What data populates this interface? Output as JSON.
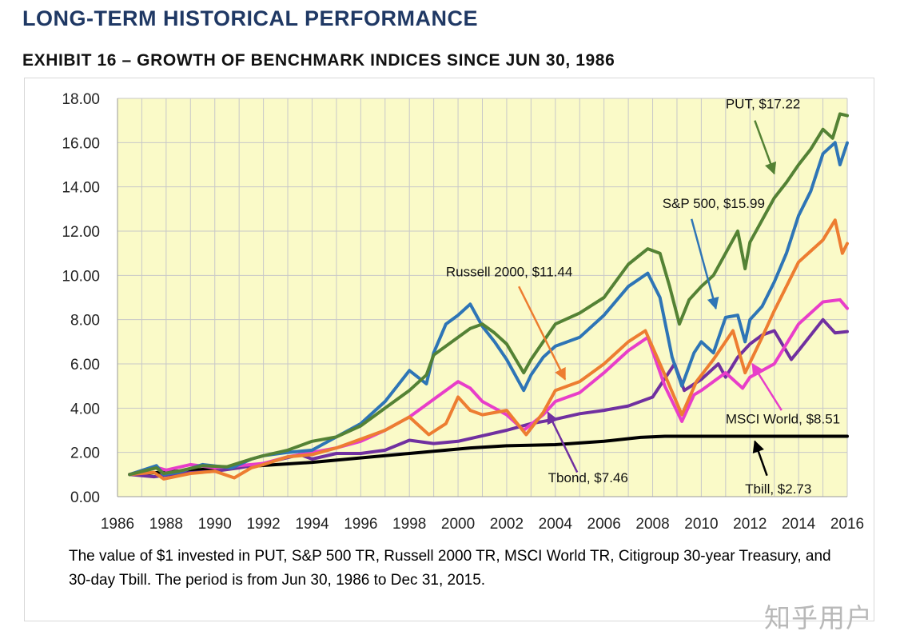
{
  "header": {
    "title": "LONG-TERM HISTORICAL PERFORMANCE",
    "exhibit": "EXHIBIT 16 – GROWTH OF BENCHMARK INDICES SINCE JUN 30, 1986"
  },
  "caption": "The value of $1 invested in PUT,  S&P 500 TR, Russell 2000 TR, MSCI World TR, Citigroup 30-year Treasury, and 30-day Tbill. The period is from Jun 30, 1986 to Dec 31, 2015.",
  "watermark": "知乎用户",
  "chart_data": {
    "type": "line",
    "title": "",
    "xlabel": "",
    "ylabel": "",
    "xlim": [
      1986,
      2016
    ],
    "ylim": [
      0,
      18
    ],
    "x_ticks": [
      "1986",
      "1988",
      "1990",
      "1992",
      "1994",
      "1996",
      "1998",
      "2000",
      "2002",
      "2004",
      "2006",
      "2008",
      "2010",
      "2012",
      "2014",
      "2016"
    ],
    "y_ticks": [
      "0.00",
      "2.00",
      "4.00",
      "6.00",
      "8.00",
      "10.00",
      "12.00",
      "14.00",
      "16.00",
      "18.00"
    ],
    "grid": true,
    "plot_background": "#fafac8",
    "series": [
      {
        "name": "Tbill",
        "color": "#000000",
        "points": [
          [
            1986.5,
            1.0
          ],
          [
            1990,
            1.27
          ],
          [
            1994,
            1.55
          ],
          [
            1998,
            1.95
          ],
          [
            2000.5,
            2.2
          ],
          [
            2002,
            2.3
          ],
          [
            2004,
            2.35
          ],
          [
            2006,
            2.5
          ],
          [
            2007.5,
            2.68
          ],
          [
            2008.5,
            2.73
          ],
          [
            2016,
            2.73
          ]
        ]
      },
      {
        "name": "Tbond",
        "color": "#7030a0",
        "points": [
          [
            1986.5,
            1.0
          ],
          [
            1987.5,
            0.9
          ],
          [
            1988.5,
            1.05
          ],
          [
            1990,
            1.15
          ],
          [
            1991,
            1.3
          ],
          [
            1992,
            1.5
          ],
          [
            1993.5,
            1.9
          ],
          [
            1994,
            1.7
          ],
          [
            1995,
            1.95
          ],
          [
            1996,
            1.95
          ],
          [
            1997,
            2.1
          ],
          [
            1998,
            2.55
          ],
          [
            1999,
            2.4
          ],
          [
            2000,
            2.5
          ],
          [
            2001,
            2.75
          ],
          [
            2002,
            3.0
          ],
          [
            2003,
            3.3
          ],
          [
            2004,
            3.5
          ],
          [
            2005,
            3.75
          ],
          [
            2006,
            3.9
          ],
          [
            2007,
            4.1
          ],
          [
            2008,
            4.5
          ],
          [
            2008.9,
            6.0
          ],
          [
            2009.3,
            4.8
          ],
          [
            2010,
            5.3
          ],
          [
            2010.7,
            6.0
          ],
          [
            2011,
            5.4
          ],
          [
            2011.5,
            6.3
          ],
          [
            2012,
            6.9
          ],
          [
            2012.5,
            7.3
          ],
          [
            2013,
            7.5
          ],
          [
            2013.7,
            6.2
          ],
          [
            2014,
            6.6
          ],
          [
            2015,
            8.0
          ],
          [
            2015.5,
            7.4
          ],
          [
            2016,
            7.46
          ]
        ]
      },
      {
        "name": "MSCI World",
        "color": "#e83ec9",
        "points": [
          [
            1986.5,
            1.0
          ],
          [
            1987.5,
            1.35
          ],
          [
            1988,
            1.2
          ],
          [
            1989,
            1.45
          ],
          [
            1990,
            1.3
          ],
          [
            1991,
            1.4
          ],
          [
            1992,
            1.5
          ],
          [
            1993,
            1.8
          ],
          [
            1994,
            2.0
          ],
          [
            1995,
            2.2
          ],
          [
            1996,
            2.5
          ],
          [
            1997,
            3.0
          ],
          [
            1998,
            3.6
          ],
          [
            1999,
            4.4
          ],
          [
            2000,
            5.2
          ],
          [
            2000.5,
            4.9
          ],
          [
            2001,
            4.3
          ],
          [
            2002,
            3.7
          ],
          [
            2002.7,
            3.0
          ],
          [
            2003.5,
            3.7
          ],
          [
            2004,
            4.3
          ],
          [
            2005,
            4.7
          ],
          [
            2006,
            5.6
          ],
          [
            2007,
            6.6
          ],
          [
            2007.8,
            7.2
          ],
          [
            2008.5,
            5.0
          ],
          [
            2009.2,
            3.4
          ],
          [
            2009.7,
            4.6
          ],
          [
            2010,
            4.8
          ],
          [
            2011,
            5.6
          ],
          [
            2011.7,
            4.9
          ],
          [
            2012,
            5.4
          ],
          [
            2013,
            6.0
          ],
          [
            2014,
            7.8
          ],
          [
            2014.5,
            8.3
          ],
          [
            2015,
            8.8
          ],
          [
            2015.7,
            8.9
          ],
          [
            2016,
            8.51
          ]
        ]
      },
      {
        "name": "Russell 2000",
        "color": "#ed7d31",
        "points": [
          [
            1986.5,
            1.0
          ],
          [
            1987.5,
            1.1
          ],
          [
            1987.9,
            0.8
          ],
          [
            1989,
            1.05
          ],
          [
            1990,
            1.15
          ],
          [
            1990.8,
            0.85
          ],
          [
            1991.5,
            1.3
          ],
          [
            1992,
            1.45
          ],
          [
            1993,
            1.8
          ],
          [
            1994,
            1.9
          ],
          [
            1995,
            2.2
          ],
          [
            1996,
            2.6
          ],
          [
            1997,
            3.0
          ],
          [
            1998,
            3.6
          ],
          [
            1998.8,
            2.8
          ],
          [
            1999.5,
            3.3
          ],
          [
            2000,
            4.5
          ],
          [
            2000.5,
            3.9
          ],
          [
            2001,
            3.7
          ],
          [
            2002,
            3.9
          ],
          [
            2002.8,
            2.8
          ],
          [
            2003.5,
            3.8
          ],
          [
            2004,
            4.8
          ],
          [
            2005,
            5.2
          ],
          [
            2006,
            6.0
          ],
          [
            2007,
            7.0
          ],
          [
            2007.7,
            7.5
          ],
          [
            2008.5,
            5.5
          ],
          [
            2009.2,
            3.7
          ],
          [
            2009.8,
            5.2
          ],
          [
            2010.5,
            6.2
          ],
          [
            2011.3,
            7.5
          ],
          [
            2011.8,
            5.6
          ],
          [
            2012.5,
            7.2
          ],
          [
            2013,
            8.4
          ],
          [
            2014,
            10.6
          ],
          [
            2015,
            11.6
          ],
          [
            2015.5,
            12.5
          ],
          [
            2015.8,
            11.0
          ],
          [
            2016,
            11.44
          ]
        ]
      },
      {
        "name": "S&P 500",
        "color": "#2e75b6",
        "points": [
          [
            1986.5,
            1.0
          ],
          [
            1987.6,
            1.4
          ],
          [
            1987.9,
            1.0
          ],
          [
            1988.5,
            1.1
          ],
          [
            1989.5,
            1.45
          ],
          [
            1990.7,
            1.3
          ],
          [
            1991.5,
            1.7
          ],
          [
            1992,
            1.85
          ],
          [
            1993,
            2.0
          ],
          [
            1994,
            2.1
          ],
          [
            1995,
            2.7
          ],
          [
            1996,
            3.3
          ],
          [
            1997,
            4.3
          ],
          [
            1997.5,
            5.0
          ],
          [
            1998,
            5.7
          ],
          [
            1998.7,
            5.1
          ],
          [
            1999,
            6.5
          ],
          [
            1999.5,
            7.8
          ],
          [
            2000,
            8.2
          ],
          [
            2000.5,
            8.7
          ],
          [
            2001,
            7.7
          ],
          [
            2001.5,
            7.0
          ],
          [
            2002,
            6.2
          ],
          [
            2002.7,
            4.8
          ],
          [
            2003,
            5.5
          ],
          [
            2003.5,
            6.3
          ],
          [
            2004,
            6.8
          ],
          [
            2005,
            7.2
          ],
          [
            2006,
            8.2
          ],
          [
            2007,
            9.5
          ],
          [
            2007.8,
            10.1
          ],
          [
            2008.3,
            9.0
          ],
          [
            2008.8,
            6.3
          ],
          [
            2009.2,
            5.0
          ],
          [
            2009.7,
            6.5
          ],
          [
            2010,
            7.0
          ],
          [
            2010.5,
            6.5
          ],
          [
            2011,
            8.1
          ],
          [
            2011.5,
            8.2
          ],
          [
            2011.8,
            7.0
          ],
          [
            2012,
            8.0
          ],
          [
            2012.5,
            8.6
          ],
          [
            2013,
            9.7
          ],
          [
            2013.5,
            11.0
          ],
          [
            2014,
            12.7
          ],
          [
            2014.5,
            13.8
          ],
          [
            2015,
            15.5
          ],
          [
            2015.5,
            16.0
          ],
          [
            2015.7,
            15.0
          ],
          [
            2016,
            15.99
          ]
        ]
      },
      {
        "name": "PUT",
        "color": "#548235",
        "points": [
          [
            1986.5,
            1.0
          ],
          [
            1987.6,
            1.3
          ],
          [
            1987.9,
            1.05
          ],
          [
            1988.5,
            1.15
          ],
          [
            1989.5,
            1.4
          ],
          [
            1990.5,
            1.35
          ],
          [
            1991.5,
            1.7
          ],
          [
            1992,
            1.85
          ],
          [
            1993,
            2.1
          ],
          [
            1994,
            2.5
          ],
          [
            1995,
            2.7
          ],
          [
            1996,
            3.2
          ],
          [
            1997,
            4.0
          ],
          [
            1998,
            4.8
          ],
          [
            1998.7,
            5.5
          ],
          [
            1999,
            6.4
          ],
          [
            2000,
            7.2
          ],
          [
            2000.5,
            7.6
          ],
          [
            2001,
            7.8
          ],
          [
            2001.5,
            7.4
          ],
          [
            2002,
            6.9
          ],
          [
            2002.7,
            5.6
          ],
          [
            2003,
            6.2
          ],
          [
            2003.5,
            7.0
          ],
          [
            2004,
            7.8
          ],
          [
            2005,
            8.3
          ],
          [
            2006,
            9.0
          ],
          [
            2007,
            10.5
          ],
          [
            2007.8,
            11.2
          ],
          [
            2008.3,
            11.0
          ],
          [
            2008.7,
            9.5
          ],
          [
            2009.1,
            7.8
          ],
          [
            2009.5,
            8.9
          ],
          [
            2010,
            9.5
          ],
          [
            2010.5,
            10.0
          ],
          [
            2011,
            11.0
          ],
          [
            2011.5,
            12.0
          ],
          [
            2011.8,
            10.3
          ],
          [
            2012,
            11.5
          ],
          [
            2012.5,
            12.5
          ],
          [
            2013,
            13.5
          ],
          [
            2013.5,
            14.2
          ],
          [
            2014,
            15.0
          ],
          [
            2014.5,
            15.7
          ],
          [
            2015,
            16.6
          ],
          [
            2015.4,
            16.2
          ],
          [
            2015.7,
            17.3
          ],
          [
            2016,
            17.22
          ]
        ]
      }
    ],
    "annotations": [
      {
        "text": "PUT, $17.22",
        "series": "PUT",
        "tx": 2011.0,
        "ty": 17.55,
        "ax": 2012.2,
        "ay": 17.0,
        "hx": 2013.0,
        "hy": 14.6
      },
      {
        "text": "S&P 500, $15.99",
        "series": "S&P 500",
        "tx": 2008.4,
        "ty": 13.05,
        "ax": 2009.6,
        "ay": 12.55,
        "hx": 2010.6,
        "hy": 8.5
      },
      {
        "text": "Russell 2000, $11.44",
        "series": "Russell 2000",
        "tx": 1999.5,
        "ty": 9.95,
        "ax": 2002.5,
        "ay": 9.5,
        "hx": 2004.4,
        "hy": 5.3
      },
      {
        "text": "MSCI World, $8.51",
        "series": "MSCI World",
        "tx": 2011.0,
        "ty": 3.3,
        "ax": 2013.3,
        "ay": 3.9,
        "hx": 2012.1,
        "hy": 6.0
      },
      {
        "text": "Tbond, $7.46",
        "series": "Tbond",
        "tx": 2003.7,
        "ty": 0.65,
        "ax": 2004.9,
        "ay": 1.1,
        "hx": 2003.7,
        "hy": 3.8
      },
      {
        "text": "Tbill, $2.73",
        "series": "Tbill",
        "tx": 2011.8,
        "ty": 0.15,
        "ax": 2012.7,
        "ay": 0.95,
        "hx": 2012.2,
        "hy": 2.5
      }
    ]
  }
}
